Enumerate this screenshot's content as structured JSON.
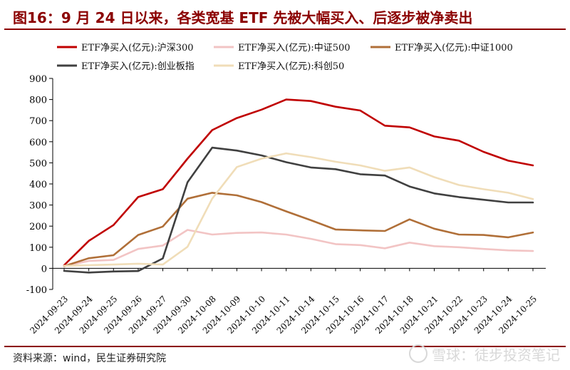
{
  "header": {
    "title": "图16：9 月 24 日以来，各类宽基 ETF 先被大幅买入、后逐步被净卖出"
  },
  "footer": {
    "source": "资料来源：wind，民生证券研究院",
    "watermark": "雪球：徒步投资笔记"
  },
  "chart_data": {
    "type": "line",
    "title": "",
    "xlabel": "",
    "ylabel": "",
    "ylim": [
      -100,
      900
    ],
    "yticks": [
      -100,
      0,
      100,
      200,
      300,
      400,
      500,
      600,
      700,
      800,
      900
    ],
    "grid": false,
    "legend_position": "top",
    "x_tick_labels": [
      "2024-09-23",
      "2024-09-24",
      "2024-09-25",
      "2024-09-26",
      "2024-09-27",
      "2024-09-30",
      "2024-10-08",
      "2024-10-09",
      "2024-10-10",
      "2024-10-11",
      "2024-10-14",
      "2024-10-15",
      "2024-10-16",
      "2024-10-17",
      "2024-10-18",
      "2024-10-21",
      "2024-10-22",
      "2024-10-23",
      "2024-10-24",
      "2024-10-25"
    ],
    "series": [
      {
        "name": "ETF净买入(亿元):沪深300",
        "color": "#c00000",
        "values": [
          15,
          130,
          205,
          338,
          375,
          520,
          655,
          712,
          752,
          800,
          793,
          766,
          748,
          676,
          668,
          625,
          605,
          552,
          510,
          488
        ]
      },
      {
        "name": "ETF净买入(亿元):中证500",
        "color": "#f2c4c4",
        "values": [
          10,
          35,
          40,
          92,
          108,
          182,
          160,
          168,
          170,
          160,
          140,
          115,
          110,
          95,
          122,
          105,
          100,
          92,
          85,
          82
        ]
      },
      {
        "name": "ETF净买入(亿元):中证1000",
        "color": "#b06f38",
        "values": [
          10,
          48,
          62,
          158,
          198,
          330,
          358,
          346,
          314,
          270,
          228,
          184,
          180,
          177,
          232,
          188,
          160,
          158,
          147,
          170
        ]
      },
      {
        "name": "ETF净买入(亿元):创业板指",
        "color": "#404040",
        "values": [
          -12,
          -20,
          -15,
          -13,
          47,
          408,
          572,
          558,
          535,
          503,
          478,
          470,
          446,
          440,
          388,
          355,
          338,
          325,
          312,
          312
        ]
      },
      {
        "name": "ETF净买入(亿元):科创50",
        "color": "#f0ddb8",
        "values": [
          12,
          15,
          18,
          22,
          18,
          102,
          330,
          480,
          520,
          545,
          527,
          505,
          488,
          462,
          478,
          432,
          395,
          375,
          358,
          328
        ]
      }
    ]
  }
}
